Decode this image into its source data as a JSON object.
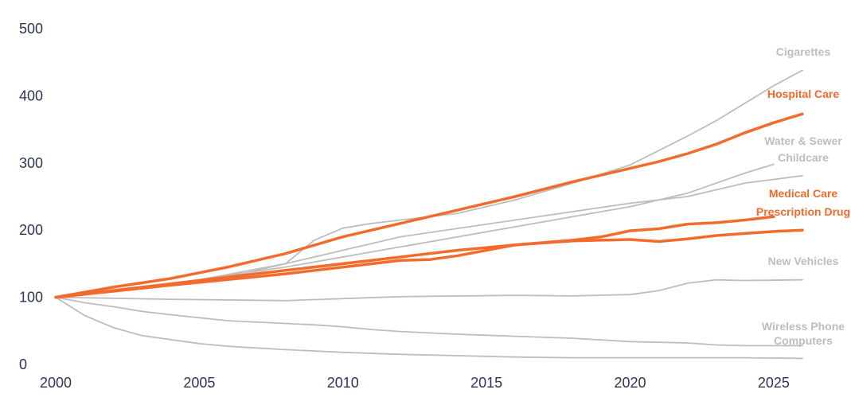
{
  "chart_data": {
    "type": "line",
    "title": "",
    "xlabel": "",
    "ylabel": "",
    "xlim": [
      2000,
      2026
    ],
    "ylim": [
      0,
      500
    ],
    "x_ticks": [
      2000,
      2005,
      2010,
      2015,
      2020,
      2025
    ],
    "y_ticks": [
      0,
      100,
      200,
      300,
      400,
      500
    ],
    "colors": {
      "highlight": "#f26b2c",
      "muted": "#bdbdbd",
      "tick_text": "#2f3550"
    },
    "series": [
      {
        "name": "Cigarettes",
        "label": "Cigarettes",
        "highlight": false,
        "x": [
          2000,
          2002,
          2004,
          2006,
          2008,
          2009,
          2010,
          2011,
          2012,
          2014,
          2016,
          2018,
          2020,
          2022,
          2023,
          2025,
          2026
        ],
        "values": [
          100,
          110,
          120,
          130,
          150,
          185,
          203,
          210,
          215,
          225,
          245,
          270,
          297,
          340,
          363,
          415,
          438
        ]
      },
      {
        "name": "Hospital Care",
        "label": "Hospital Care",
        "highlight": true,
        "x": [
          2000,
          2002,
          2004,
          2006,
          2008,
          2010,
          2012,
          2014,
          2016,
          2018,
          2020,
          2021,
          2022,
          2023,
          2024,
          2025,
          2026
        ],
        "values": [
          100,
          115,
          128,
          145,
          165,
          190,
          210,
          230,
          250,
          272,
          292,
          302,
          314,
          328,
          345,
          360,
          373
        ]
      },
      {
        "name": "Water & Sewer",
        "label": "Water & Sewer",
        "highlight": false,
        "x": [
          2000,
          2004,
          2008,
          2012,
          2016,
          2020,
          2022,
          2024,
          2025
        ],
        "values": [
          100,
          120,
          145,
          175,
          205,
          235,
          255,
          285,
          298
        ]
      },
      {
        "name": "Childcare",
        "label": "Childcare",
        "highlight": false,
        "x": [
          2000,
          2004,
          2008,
          2012,
          2016,
          2020,
          2022,
          2024,
          2026
        ],
        "values": [
          100,
          118,
          150,
          190,
          215,
          240,
          250,
          270,
          281
        ]
      },
      {
        "name": "Medical Care",
        "label": "Medical Care",
        "highlight": true,
        "x": [
          2000,
          2004,
          2008,
          2012,
          2014,
          2016,
          2018,
          2019,
          2020,
          2021,
          2022,
          2023,
          2024,
          2025
        ],
        "values": [
          100,
          120,
          140,
          160,
          170,
          178,
          185,
          190,
          199,
          202,
          209,
          211,
          215,
          220
        ]
      },
      {
        "name": "Prescription Drug",
        "label": "Prescription Drug",
        "highlight": true,
        "x": [
          2000,
          2004,
          2008,
          2012,
          2013,
          2014,
          2016,
          2018,
          2020,
          2021,
          2022,
          2023,
          2024,
          2025,
          2026
        ],
        "values": [
          100,
          118,
          135,
          155,
          156,
          162,
          178,
          184,
          186,
          183,
          187,
          192,
          195,
          198,
          200
        ]
      },
      {
        "name": "New Vehicles",
        "label": "New Vehicles",
        "highlight": false,
        "x": [
          2000,
          2004,
          2008,
          2012,
          2016,
          2018,
          2020,
          2021,
          2022,
          2023,
          2024,
          2026
        ],
        "values": [
          100,
          97,
          95,
          101,
          103,
          102,
          104,
          110,
          121,
          126,
          125,
          126
        ]
      },
      {
        "name": "Wireless Phone",
        "label": "Wireless Phone",
        "highlight": false,
        "x": [
          2000,
          2001,
          2002,
          2003,
          2004,
          2006,
          2008,
          2009,
          2010,
          2011,
          2012,
          2014,
          2016,
          2018,
          2020,
          2022,
          2023,
          2024,
          2026
        ],
        "values": [
          100,
          92,
          86,
          79,
          74,
          65,
          61,
          59,
          56,
          52,
          49,
          45,
          42,
          39,
          34,
          32,
          29,
          28,
          28
        ]
      },
      {
        "name": "Computers",
        "label": "Computers",
        "highlight": false,
        "x": [
          2000,
          2001,
          2002,
          2003,
          2004,
          2005,
          2006,
          2008,
          2010,
          2012,
          2014,
          2016,
          2018,
          2020,
          2022,
          2024,
          2026
        ],
        "values": [
          100,
          73,
          55,
          43,
          37,
          31,
          27,
          22,
          18,
          15,
          13,
          11,
          10,
          10,
          10,
          10,
          9
        ]
      }
    ]
  }
}
